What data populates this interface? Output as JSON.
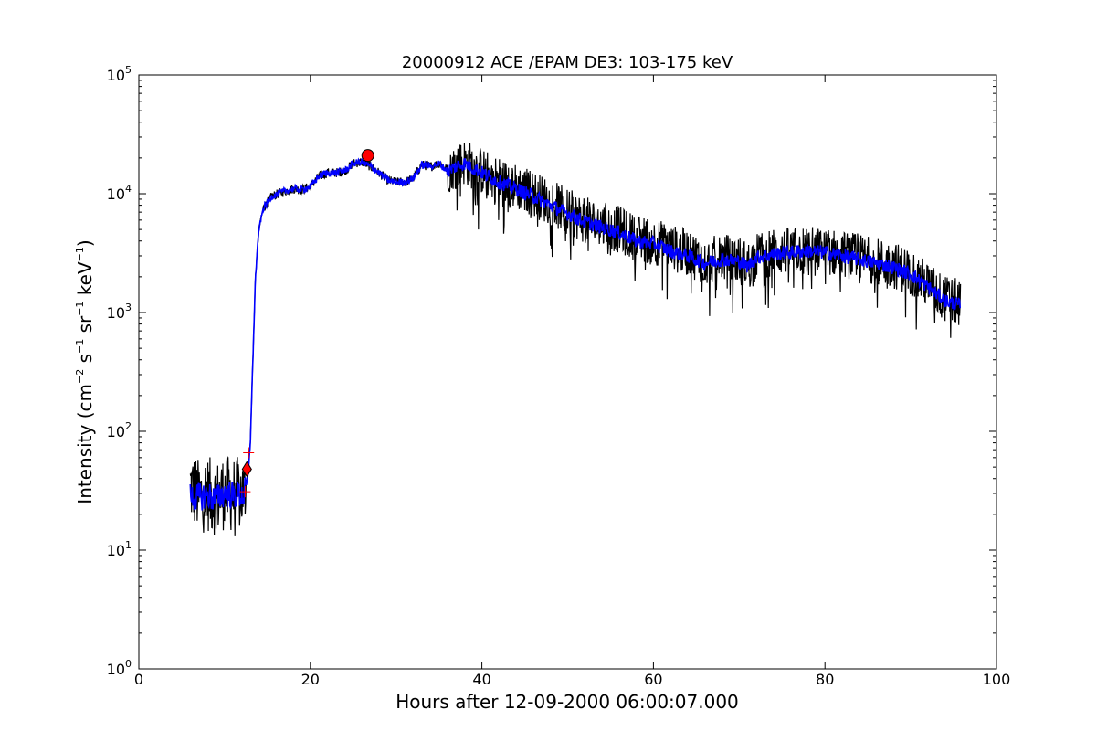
{
  "chart_data": {
    "type": "line",
    "title": "20000912 ACE /EPAM DE3: 103-175 keV",
    "xlabel": "Hours after 12-09-2000 06:00:07.000",
    "ylabel": {
      "prefix": "Intensity (cm",
      "exp1": "−2",
      "mid1": " s",
      "exp2": "−1",
      "mid2": " sr",
      "exp3": "−1",
      "mid3": " keV",
      "exp4": "−1",
      "suffix": ")"
    },
    "xlim": [
      0,
      100
    ],
    "ylim": [
      1,
      100000
    ],
    "yscale": "log",
    "grid": false,
    "xticks": [
      0,
      20,
      40,
      60,
      80,
      100
    ],
    "yticks": [
      {
        "base": "10",
        "exp": "0",
        "value": 1
      },
      {
        "base": "10",
        "exp": "1",
        "value": 10
      },
      {
        "base": "10",
        "exp": "2",
        "value": 100
      },
      {
        "base": "10",
        "exp": "3",
        "value": 1000
      },
      {
        "base": "10",
        "exp": "4",
        "value": 10000
      },
      {
        "base": "10",
        "exp": "5",
        "value": 100000
      }
    ],
    "series": [
      {
        "style": "raw",
        "color": "#000000",
        "points": [
          [
            6.0,
            35
          ],
          [
            7,
            28
          ],
          [
            8,
            30
          ],
          [
            9,
            27
          ],
          [
            10,
            31
          ],
          [
            11,
            29
          ],
          [
            12.3,
            30
          ],
          [
            12.7,
            45
          ],
          [
            13.0,
            80
          ],
          [
            13.3,
            400
          ],
          [
            13.6,
            2000
          ],
          [
            14.0,
            5000
          ],
          [
            14.5,
            7500
          ],
          [
            15.5,
            9500
          ],
          [
            17,
            10500
          ],
          [
            18,
            11000
          ],
          [
            19,
            10800
          ],
          [
            20,
            11500
          ],
          [
            21,
            14000
          ],
          [
            22,
            15000
          ],
          [
            23,
            15000
          ],
          [
            24,
            15500
          ],
          [
            25,
            18000
          ],
          [
            26,
            18500
          ],
          [
            27,
            17000
          ],
          [
            28,
            15000
          ],
          [
            29,
            13000
          ],
          [
            30,
            12500
          ],
          [
            31,
            12500
          ],
          [
            32,
            13500
          ],
          [
            33,
            17500
          ],
          [
            34,
            17000
          ],
          [
            35,
            18000
          ],
          [
            36,
            16000
          ],
          [
            37,
            17000
          ],
          [
            38,
            18500
          ],
          [
            40,
            15500
          ],
          [
            42,
            13000
          ],
          [
            44,
            11500
          ],
          [
            46,
            10000
          ],
          [
            48,
            8500
          ],
          [
            50,
            7000
          ],
          [
            52,
            6000
          ],
          [
            54,
            5500
          ],
          [
            56,
            5000
          ],
          [
            58,
            4200
          ],
          [
            60,
            4000
          ],
          [
            62,
            3500
          ],
          [
            64,
            3200
          ],
          [
            66,
            2700
          ],
          [
            68,
            2900
          ],
          [
            70,
            2800
          ],
          [
            71,
            2500
          ],
          [
            72,
            3000
          ],
          [
            74,
            3200
          ],
          [
            76,
            3300
          ],
          [
            78,
            3400
          ],
          [
            80,
            3300
          ],
          [
            82,
            3100
          ],
          [
            84,
            2900
          ],
          [
            86,
            2700
          ],
          [
            88,
            2500
          ],
          [
            90,
            2200
          ],
          [
            92,
            1700
          ],
          [
            94,
            1300
          ],
          [
            95.8,
            1200
          ]
        ]
      },
      {
        "style": "smoothed",
        "color": "#0000ff",
        "points": [
          [
            6.0,
            28
          ],
          [
            7,
            28
          ],
          [
            8,
            29
          ],
          [
            9,
            27
          ],
          [
            10,
            30
          ],
          [
            11,
            29
          ],
          [
            12.3,
            29
          ],
          [
            12.7,
            40
          ],
          [
            13.0,
            80
          ],
          [
            13.3,
            400
          ],
          [
            13.6,
            2000
          ],
          [
            14.0,
            5000
          ],
          [
            14.5,
            7500
          ],
          [
            15.5,
            9500
          ],
          [
            17,
            10500
          ],
          [
            18,
            11000
          ],
          [
            19,
            10800
          ],
          [
            20,
            11500
          ],
          [
            21,
            14000
          ],
          [
            22,
            15000
          ],
          [
            23,
            15000
          ],
          [
            24,
            15500
          ],
          [
            25,
            18000
          ],
          [
            26,
            18500
          ],
          [
            27,
            17000
          ],
          [
            28,
            15000
          ],
          [
            29,
            13000
          ],
          [
            30,
            12500
          ],
          [
            31,
            12500
          ],
          [
            32,
            13500
          ],
          [
            33,
            17500
          ],
          [
            34,
            17000
          ],
          [
            35,
            18000
          ],
          [
            36,
            15500
          ],
          [
            37,
            17000
          ],
          [
            38,
            18000
          ],
          [
            40,
            15000
          ],
          [
            42,
            12500
          ],
          [
            44,
            11000
          ],
          [
            46,
            9500
          ],
          [
            48,
            8000
          ],
          [
            50,
            6800
          ],
          [
            52,
            5800
          ],
          [
            54,
            5200
          ],
          [
            56,
            4700
          ],
          [
            58,
            4000
          ],
          [
            60,
            3800
          ],
          [
            62,
            3300
          ],
          [
            64,
            3000
          ],
          [
            66,
            2600
          ],
          [
            68,
            2800
          ],
          [
            70,
            2700
          ],
          [
            71,
            2450
          ],
          [
            72,
            2900
          ],
          [
            74,
            3100
          ],
          [
            76,
            3200
          ],
          [
            78,
            3300
          ],
          [
            80,
            3200
          ],
          [
            82,
            3000
          ],
          [
            84,
            2800
          ],
          [
            86,
            2600
          ],
          [
            88,
            2400
          ],
          [
            90,
            2100
          ],
          [
            92,
            1650
          ],
          [
            94,
            1250
          ],
          [
            95.8,
            1150
          ]
        ]
      }
    ],
    "markers": [
      {
        "shape": "circle",
        "color": "#ff0000",
        "x": 26.7,
        "y": 21000
      },
      {
        "shape": "diamond",
        "color": "#ff0000",
        "x": 12.6,
        "y": 48
      },
      {
        "shape": "plus",
        "color": "#ff0000",
        "x": 12.8,
        "y": 66
      },
      {
        "shape": "plus",
        "color": "#ff0000",
        "x": 12.4,
        "y": 31
      }
    ]
  }
}
